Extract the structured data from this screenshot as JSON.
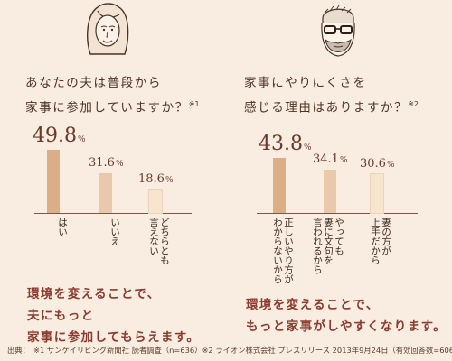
{
  "left": {
    "question": [
      "あなたの夫は普段から",
      "家事に参加していますか？"
    ],
    "note_mark": "※1",
    "conclusion": [
      "環境を変えることで、",
      "夫にもっと",
      "家事に参加してもらえます。"
    ]
  },
  "right": {
    "question": [
      "家事にやりにくさを",
      "感じる理由はありますか？"
    ],
    "note_mark": "※2",
    "conclusion": [
      "環境を変えることで、",
      "もっと家事がしやすくなります。"
    ]
  },
  "source": "出典：　※1 サンケイリビング新聞社 読者調査（n=636）※2 ライオン株式会社 プレスリリース 2013年9月24日（有効回答数=606）",
  "colors": {
    "dark": "#dcae86",
    "mid": "#e9c9a9",
    "light": "#f8e5cd",
    "conclusion": "#8b3a2e"
  },
  "chart_data": [
    {
      "type": "bar",
      "unit": "%",
      "categories": [
        [
          "はい"
        ],
        [
          "いいえ"
        ],
        [
          "どちらとも",
          "言えない"
        ]
      ],
      "values": [
        49.8,
        31.6,
        18.6
      ],
      "value_labels": [
        "49.8",
        "31.6",
        "18.6"
      ],
      "ylim": [
        0,
        50
      ]
    },
    {
      "type": "bar",
      "unit": "%",
      "categories": [
        [
          "正しいやり方が",
          "わからないから"
        ],
        [
          "やっても",
          "妻に文句を",
          "言われるから"
        ],
        [
          "妻の方が",
          "上手だから"
        ]
      ],
      "values": [
        43.8,
        34.1,
        30.6
      ],
      "value_labels": [
        "43.8",
        "34.1",
        "30.6"
      ],
      "ylim": [
        0,
        50
      ]
    }
  ]
}
